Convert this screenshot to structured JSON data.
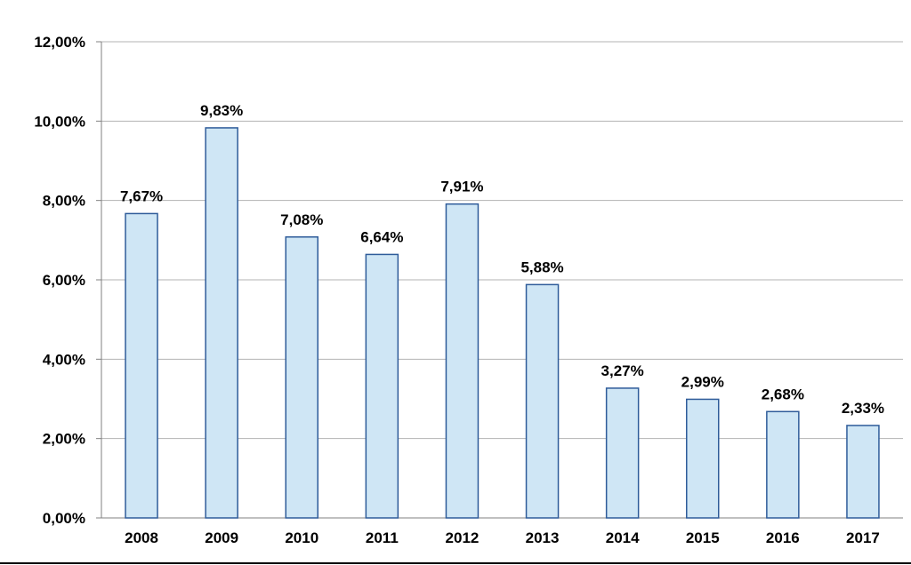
{
  "chart_data": {
    "type": "bar",
    "categories": [
      "2008",
      "2009",
      "2010",
      "2011",
      "2012",
      "2013",
      "2014",
      "2015",
      "2016",
      "2017"
    ],
    "values": [
      7.67,
      9.83,
      7.08,
      6.64,
      7.91,
      5.88,
      3.27,
      2.99,
      2.68,
      2.33
    ],
    "data_labels": [
      "7,67%",
      "9,83%",
      "7,08%",
      "6,64%",
      "7,91%",
      "5,88%",
      "3,27%",
      "2,99%",
      "2,68%",
      "2,33%"
    ],
    "ylim": [
      0,
      12
    ],
    "yticks": [
      0,
      2,
      4,
      6,
      8,
      10,
      12
    ],
    "ytick_labels": [
      "0,00%",
      "2,00%",
      "4,00%",
      "6,00%",
      "8,00%",
      "10,00%",
      "12,00%"
    ],
    "title": "",
    "xlabel": "",
    "ylabel": "",
    "grid": true,
    "legend": false,
    "colors": {
      "bar_fill": "#cfe6f5",
      "bar_stroke": "#2f5c9a",
      "gridline": "#b3b3b3",
      "axis": "#808080",
      "text": "#000000"
    }
  }
}
